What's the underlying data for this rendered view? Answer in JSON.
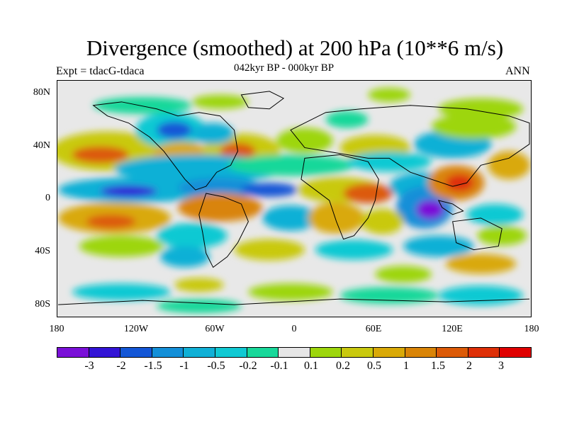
{
  "title": "Divergence (smoothed) at 200 hPa (10**6 m/s)",
  "expt": "Expt = tdacG-tdaca",
  "period": "042kyr BP - 000kyr BP",
  "season": "ANN",
  "y_axis": {
    "ticks": [
      "80N",
      "40N",
      "0",
      "40S",
      "80S"
    ]
  },
  "x_axis": {
    "ticks": [
      "180",
      "120W",
      "60W",
      "0",
      "60E",
      "120E",
      "180"
    ]
  },
  "colorbar": {
    "colors": [
      "#7a10d8",
      "#3314d6",
      "#1356d6",
      "#138fd8",
      "#10b0d6",
      "#10c9d3",
      "#18d89a",
      "#e6e6e6",
      "#9dd60c",
      "#c9c90e",
      "#d9a907",
      "#d98407",
      "#dc5a07",
      "#de2f07",
      "#e00000"
    ],
    "labels": [
      "-3",
      "-2",
      "-1.5",
      "-1",
      "-0.5",
      "-0.2",
      "-0.1",
      "0.1",
      "0.2",
      "0.5",
      "1",
      "1.5",
      "2",
      "3"
    ]
  }
}
